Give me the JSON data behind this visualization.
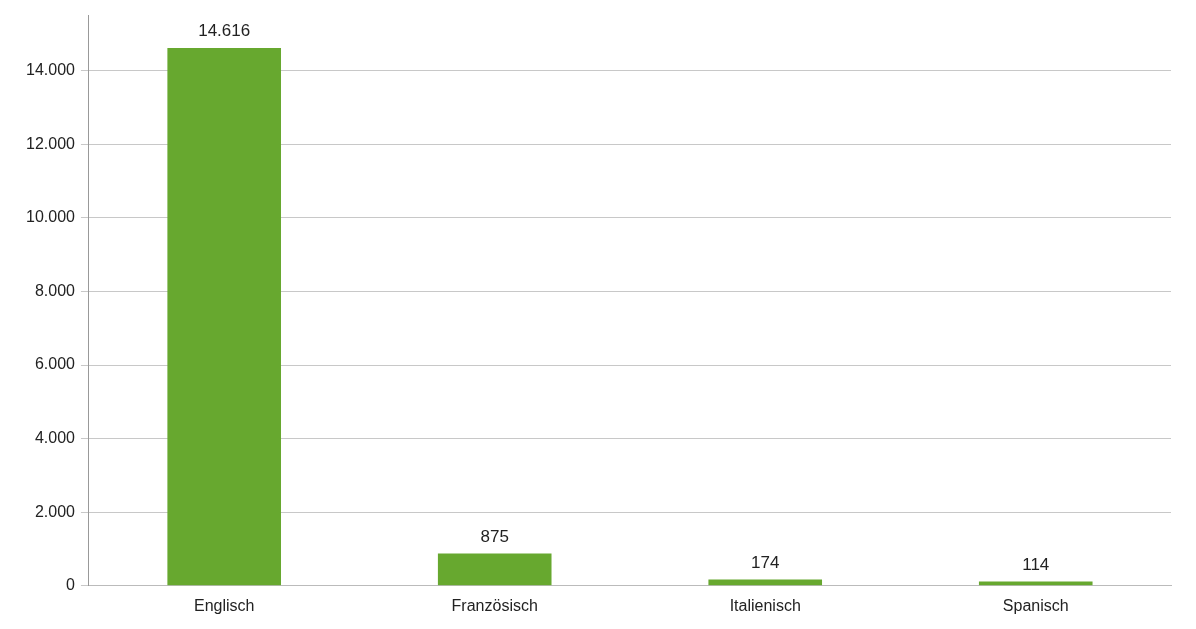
{
  "chart_data": {
    "type": "bar",
    "categories": [
      "Englisch",
      "Französisch",
      "Italienisch",
      "Spanisch"
    ],
    "values": [
      14616,
      875,
      174,
      114
    ],
    "color": "#67a82f",
    "value_labels": [
      "14.616",
      "875",
      "174",
      "114"
    ],
    "ylim": [
      0,
      15500
    ],
    "yticks": [
      {
        "value": 0,
        "label": "0"
      },
      {
        "value": 2000,
        "label": "2.000"
      },
      {
        "value": 4000,
        "label": "4.000"
      },
      {
        "value": 6000,
        "label": "6.000"
      },
      {
        "value": 8000,
        "label": "8.000"
      },
      {
        "value": 10000,
        "label": "10.000"
      },
      {
        "value": 12000,
        "label": "12.000"
      },
      {
        "value": 14000,
        "label": "14.000"
      }
    ],
    "grid": "y",
    "legend": false
  }
}
